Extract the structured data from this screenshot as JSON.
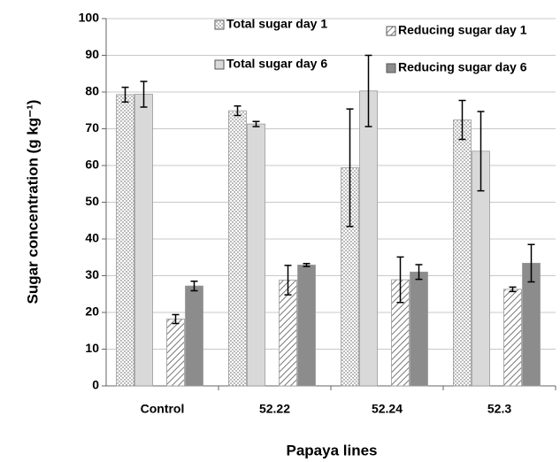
{
  "chart_data": {
    "type": "bar",
    "y_label": "Sugar concentration (g kg⁻¹)",
    "x_label": "Papaya lines",
    "categories": [
      "Control",
      "52.22",
      "52.24",
      "52.3"
    ],
    "series": [
      {
        "name": "Total sugar day 1",
        "color": "#ffffff",
        "pattern": "dots",
        "values": [
          79.3,
          74.9,
          59.4,
          72.4
        ],
        "errors": [
          2,
          1.3,
          16,
          5.3
        ]
      },
      {
        "name": "Reducing sugar day 1",
        "color": "#ffffff",
        "pattern": "hatch",
        "values": [
          18.2,
          28.8,
          28.9,
          26.3
        ],
        "errors": [
          1.2,
          4,
          6.2,
          0.6
        ]
      },
      {
        "name": "Total sugar day 6",
        "color": "#d9d9d9",
        "pattern": "solid",
        "values": [
          79.4,
          71.3,
          80.3,
          63.9
        ],
        "errors": [
          3.5,
          0.7,
          9.7,
          10.8
        ]
      },
      {
        "name": "Reducing sugar day 6",
        "color": "#8c8c8c",
        "pattern": "solid",
        "values": [
          27.2,
          32.9,
          31,
          33.4
        ],
        "errors": [
          1.3,
          0.4,
          2,
          5.1
        ]
      }
    ],
    "ylim": [
      0,
      100
    ],
    "yticks": [
      0,
      10,
      20,
      30,
      40,
      50,
      60,
      70,
      80,
      90,
      100
    ],
    "grid": true,
    "legend": "top"
  }
}
